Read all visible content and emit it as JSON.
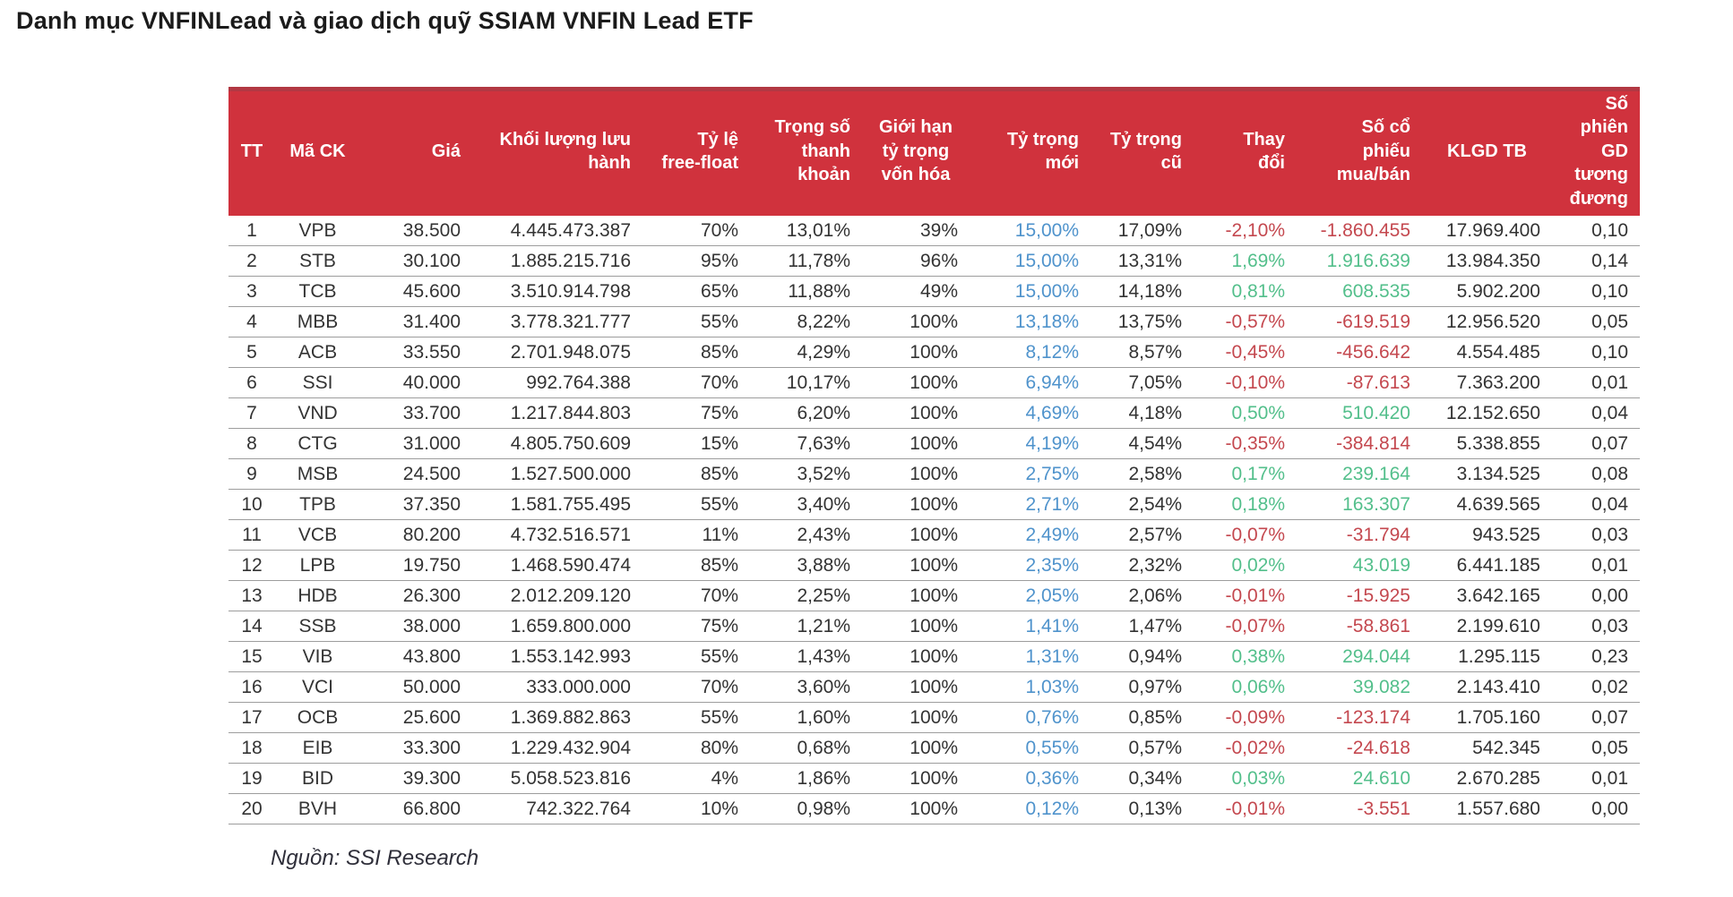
{
  "title": "Danh mục VNFINLead và giao dịch quỹ SSIAM VNFIN Lead ETF",
  "source": "Nguồn: SSI Research",
  "colors": {
    "header_bg": "#d0323d",
    "header_dark": "#b23843",
    "header_text": "#ffffff",
    "text": "#333333",
    "new_weight_blue": "#4f93cc",
    "positive_green": "#53bf8b",
    "negative_red": "#c4484f"
  },
  "table": {
    "columns": [
      {
        "label": "TT",
        "align": "center",
        "style": "default"
      },
      {
        "label": "Mã CK",
        "align": "center",
        "style": "default"
      },
      {
        "label": "Giá",
        "align": "right",
        "style": "default"
      },
      {
        "label": "Khối lượng lưu\nhành",
        "align": "right",
        "style": "default"
      },
      {
        "label": "Tỷ lệ\nfree-float",
        "align": "right",
        "style": "default"
      },
      {
        "label": "Trọng số\nthanh\nkhoản",
        "align": "right",
        "style": "default"
      },
      {
        "label": "Giới hạn\ntỷ trọng\nvốn hóa",
        "align": "right",
        "header_align": "center",
        "style": "default"
      },
      {
        "label": "Tỷ trọng\nmới",
        "align": "right",
        "style": "blue"
      },
      {
        "label": "Tỷ trọng\ncũ",
        "align": "right",
        "style": "default"
      },
      {
        "label": "Thay\nđổi",
        "align": "right",
        "style": "signed"
      },
      {
        "label": "Số cổ\nphiếu\nmua/bán",
        "align": "right",
        "style": "signed"
      },
      {
        "label": "KLGD TB",
        "align": "right",
        "header_align": "center",
        "style": "default"
      },
      {
        "label": "Số phiên\nGD\ntương\nđương",
        "align": "right",
        "style": "default"
      }
    ],
    "rows": [
      [
        "1",
        "VPB",
        "38.500",
        "4.445.473.387",
        "70%",
        "13,01%",
        "39%",
        "15,00%",
        "17,09%",
        "-2,10%",
        "-1.860.455",
        "17.969.400",
        "0,10"
      ],
      [
        "2",
        "STB",
        "30.100",
        "1.885.215.716",
        "95%",
        "11,78%",
        "96%",
        "15,00%",
        "13,31%",
        "1,69%",
        "1.916.639",
        "13.984.350",
        "0,14"
      ],
      [
        "3",
        "TCB",
        "45.600",
        "3.510.914.798",
        "65%",
        "11,88%",
        "49%",
        "15,00%",
        "14,18%",
        "0,81%",
        "608.535",
        "5.902.200",
        "0,10"
      ],
      [
        "4",
        "MBB",
        "31.400",
        "3.778.321.777",
        "55%",
        "8,22%",
        "100%",
        "13,18%",
        "13,75%",
        "-0,57%",
        "-619.519",
        "12.956.520",
        "0,05"
      ],
      [
        "5",
        "ACB",
        "33.550",
        "2.701.948.075",
        "85%",
        "4,29%",
        "100%",
        "8,12%",
        "8,57%",
        "-0,45%",
        "-456.642",
        "4.554.485",
        "0,10"
      ],
      [
        "6",
        "SSI",
        "40.000",
        "992.764.388",
        "70%",
        "10,17%",
        "100%",
        "6,94%",
        "7,05%",
        "-0,10%",
        "-87.613",
        "7.363.200",
        "0,01"
      ],
      [
        "7",
        "VND",
        "33.700",
        "1.217.844.803",
        "75%",
        "6,20%",
        "100%",
        "4,69%",
        "4,18%",
        "0,50%",
        "510.420",
        "12.152.650",
        "0,04"
      ],
      [
        "8",
        "CTG",
        "31.000",
        "4.805.750.609",
        "15%",
        "7,63%",
        "100%",
        "4,19%",
        "4,54%",
        "-0,35%",
        "-384.814",
        "5.338.855",
        "0,07"
      ],
      [
        "9",
        "MSB",
        "24.500",
        "1.527.500.000",
        "85%",
        "3,52%",
        "100%",
        "2,75%",
        "2,58%",
        "0,17%",
        "239.164",
        "3.134.525",
        "0,08"
      ],
      [
        "10",
        "TPB",
        "37.350",
        "1.581.755.495",
        "55%",
        "3,40%",
        "100%",
        "2,71%",
        "2,54%",
        "0,18%",
        "163.307",
        "4.639.565",
        "0,04"
      ],
      [
        "11",
        "VCB",
        "80.200",
        "4.732.516.571",
        "11%",
        "2,43%",
        "100%",
        "2,49%",
        "2,57%",
        "-0,07%",
        "-31.794",
        "943.525",
        "0,03"
      ],
      [
        "12",
        "LPB",
        "19.750",
        "1.468.590.474",
        "85%",
        "3,88%",
        "100%",
        "2,35%",
        "2,32%",
        "0,02%",
        "43.019",
        "6.441.185",
        "0,01"
      ],
      [
        "13",
        "HDB",
        "26.300",
        "2.012.209.120",
        "70%",
        "2,25%",
        "100%",
        "2,05%",
        "2,06%",
        "-0,01%",
        "-15.925",
        "3.642.165",
        "0,00"
      ],
      [
        "14",
        "SSB",
        "38.000",
        "1.659.800.000",
        "75%",
        "1,21%",
        "100%",
        "1,41%",
        "1,47%",
        "-0,07%",
        "-58.861",
        "2.199.610",
        "0,03"
      ],
      [
        "15",
        "VIB",
        "43.800",
        "1.553.142.993",
        "55%",
        "1,43%",
        "100%",
        "1,31%",
        "0,94%",
        "0,38%",
        "294.044",
        "1.295.115",
        "0,23"
      ],
      [
        "16",
        "VCI",
        "50.000",
        "333.000.000",
        "70%",
        "3,60%",
        "100%",
        "1,03%",
        "0,97%",
        "0,06%",
        "39.082",
        "2.143.410",
        "0,02"
      ],
      [
        "17",
        "OCB",
        "25.600",
        "1.369.882.863",
        "55%",
        "1,60%",
        "100%",
        "0,76%",
        "0,85%",
        "-0,09%",
        "-123.174",
        "1.705.160",
        "0,07"
      ],
      [
        "18",
        "EIB",
        "33.300",
        "1.229.432.904",
        "80%",
        "0,68%",
        "100%",
        "0,55%",
        "0,57%",
        "-0,02%",
        "-24.618",
        "542.345",
        "0,05"
      ],
      [
        "19",
        "BID",
        "39.300",
        "5.058.523.816",
        "4%",
        "1,86%",
        "100%",
        "0,36%",
        "0,34%",
        "0,03%",
        "24.610",
        "2.670.285",
        "0,01"
      ],
      [
        "20",
        "BVH",
        "66.800",
        "742.322.764",
        "10%",
        "0,98%",
        "100%",
        "0,12%",
        "0,13%",
        "-0,01%",
        "-3.551",
        "1.557.680",
        "0,00"
      ]
    ]
  }
}
